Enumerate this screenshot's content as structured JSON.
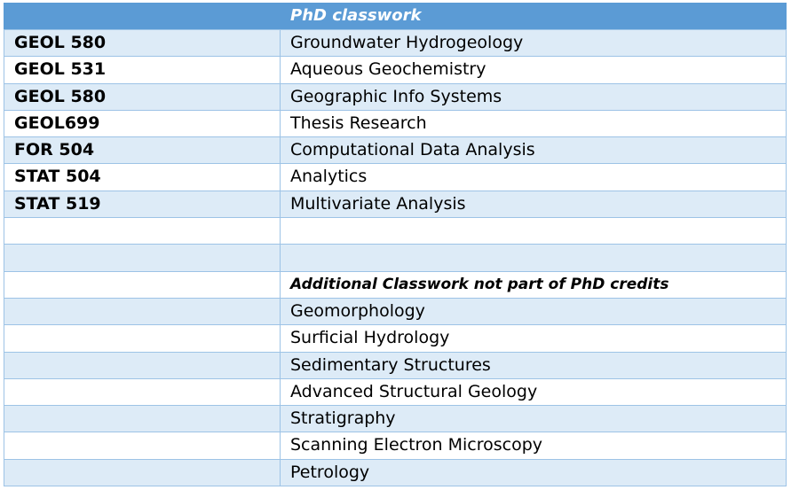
{
  "table": {
    "header": "PhD classwork",
    "rows": [
      {
        "code": "GEOL 580",
        "title": "Groundwater Hydrogeology"
      },
      {
        "code": "GEOL 531",
        "title": "Aqueous Geochemistry"
      },
      {
        "code": "GEOL 580",
        "title": "Geographic Info Systems"
      },
      {
        "code": "GEOL699",
        "title": "Thesis Research"
      },
      {
        "code": "FOR 504",
        "title": "Computational Data Analysis"
      },
      {
        "code": "STAT 504",
        "title": "Analytics"
      },
      {
        "code": "STAT 519",
        "title": "Multivariate Analysis"
      },
      {
        "code": "",
        "title": ""
      },
      {
        "code": "",
        "title": ""
      },
      {
        "code": "",
        "title": "Additional Classwork not part of PhD credits",
        "subhead": true
      },
      {
        "code": "",
        "title": "Geomorphology"
      },
      {
        "code": "",
        "title": "Surficial Hydrology"
      },
      {
        "code": "",
        "title": "Sedimentary Structures"
      },
      {
        "code": "",
        "title": "Advanced Structural Geology"
      },
      {
        "code": "",
        "title": "Stratigraphy"
      },
      {
        "code": "",
        "title": "Scanning Electron Microscopy"
      },
      {
        "code": "",
        "title": "Petrology"
      }
    ]
  },
  "colors": {
    "header_bg": "#5b9bd5",
    "band": "#ddebf7",
    "border": "#9dc3e6"
  }
}
